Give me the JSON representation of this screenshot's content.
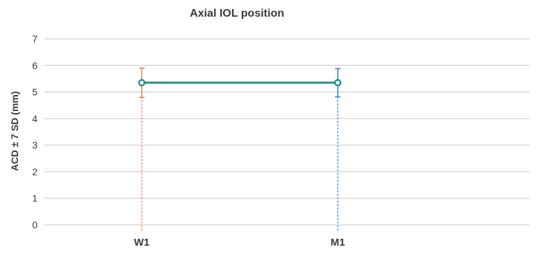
{
  "chart_data": {
    "type": "line",
    "title": "Axial IOL position",
    "xlabel": "",
    "ylabel": "ACD ± 7 SD (mm)",
    "categories": [
      "W1",
      "M1"
    ],
    "y_ticks": [
      "0",
      "1",
      "2",
      "3",
      "4",
      "5",
      "6",
      "7"
    ],
    "ylim": [
      0,
      7
    ],
    "grid": true,
    "legend": "none",
    "series": [
      {
        "values": [
          5.35,
          5.35
        ],
        "error": [
          0.55,
          0.53
        ],
        "color": "#2b8c8c"
      }
    ],
    "error_bar_colors": [
      "#e0844f",
      "#2f84c6"
    ],
    "drop_line_colors": [
      "#e0844f",
      "#2f84c6"
    ]
  }
}
